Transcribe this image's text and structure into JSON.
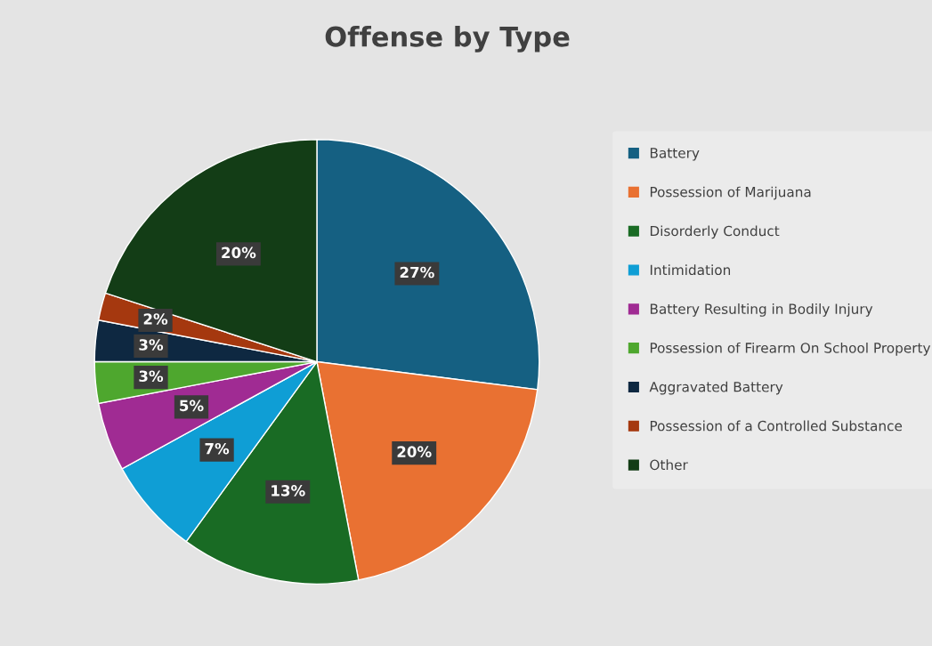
{
  "chart_data": {
    "type": "pie",
    "title": "Offense by Type",
    "categories": [
      "Battery",
      "Possession of Marijuana",
      "Disorderly Conduct",
      "Intimidation",
      "Battery Resulting in Bodily Injury",
      "Possession of Firearm On School Property",
      "Aggravated Battery",
      "Possession of a Controlled Substance",
      "Other"
    ],
    "values": [
      27,
      20,
      13,
      7,
      5,
      3,
      3,
      2,
      20
    ],
    "value_labels": [
      "27%",
      "20%",
      "13%",
      "7%",
      "5%",
      "3%",
      "3%",
      "2%",
      "20%"
    ],
    "colors": [
      "#156082",
      "#e97132",
      "#196b24",
      "#0f9ed5",
      "#a02b93",
      "#4ea72e",
      "#0e2841",
      "#a5380f",
      "#133d16"
    ],
    "legend": "right"
  }
}
